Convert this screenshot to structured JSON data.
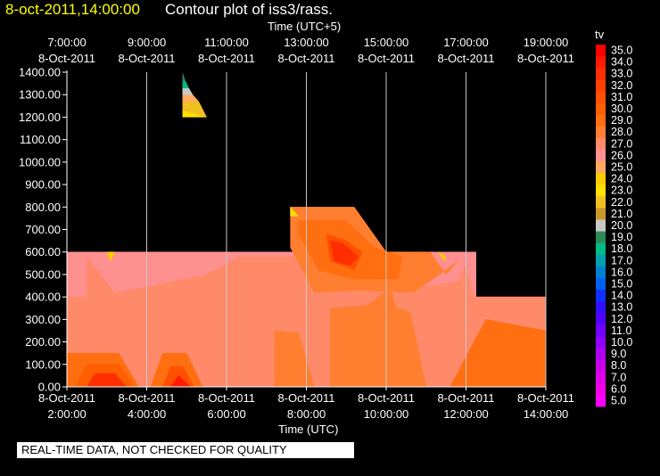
{
  "header": {
    "date_label": "8-oct-2011,14:00:00",
    "title": "Contour plot of iss3/rass."
  },
  "chart_data": {
    "type": "heatmap",
    "title": "Contour plot of iss3/rass.",
    "x_top_label": "Time (UTC+5)",
    "x_bottom_label": "Time (UTC)",
    "ylabel": "",
    "ylim": [
      0,
      1400
    ],
    "xlim_utc_hours": [
      2,
      14
    ],
    "grid": true,
    "y_ticks": [
      "0.00",
      "100.00",
      "200.00",
      "300.00",
      "400.00",
      "500.00",
      "600.00",
      "700.00",
      "800.00",
      "900.00",
      "1000.00",
      "1100.00",
      "1200.00",
      "1300.00",
      "1400.00"
    ],
    "x_top_ticks": [
      {
        "time": "7:00:00",
        "date": "8-Oct-2011"
      },
      {
        "time": "9:00:00",
        "date": "8-Oct-2011"
      },
      {
        "time": "11:00:00",
        "date": "8-Oct-2011"
      },
      {
        "time": "13:00:00",
        "date": "8-Oct-2011"
      },
      {
        "time": "15:00:00",
        "date": "8-Oct-2011"
      },
      {
        "time": "17:00:00",
        "date": "8-Oct-2011"
      },
      {
        "time": "19:00:00",
        "date": "8-Oct-2011"
      }
    ],
    "x_bottom_ticks": [
      {
        "time": "2:00:00",
        "date": "8-Oct-2011"
      },
      {
        "time": "4:00:00",
        "date": "8-Oct-2011"
      },
      {
        "time": "6:00:00",
        "date": "8-Oct-2011"
      },
      {
        "time": "8:00:00",
        "date": "8-Oct-2011"
      },
      {
        "time": "10:00:00",
        "date": "8-Oct-2011"
      },
      {
        "time": "12:00:00",
        "date": "8-Oct-2011"
      },
      {
        "time": "14:00:00",
        "date": "8-Oct-2011"
      }
    ],
    "legend": {
      "title": "tv",
      "labels": [
        "35.0",
        "34.0",
        "33.0",
        "32.0",
        "31.0",
        "30.0",
        "29.0",
        "28.0",
        "27.0",
        "26.0",
        "25.0",
        "24.0",
        "23.0",
        "22.0",
        "21.0",
        "20.0",
        "19.0",
        "18.0",
        "17.0",
        "16.0",
        "15.0",
        "14.0",
        "13.0",
        "12.0",
        "11.0",
        "10.0",
        "9.0",
        "8.0",
        "7.0",
        "6.0",
        "5.0"
      ],
      "colors": [
        "#ff0000",
        "#ff1a00",
        "#ff2e00",
        "#ff3f00",
        "#ff4f00",
        "#ff5f00",
        "#ff6e10",
        "#ff7e30",
        "#ff8a6a",
        "#ff9090",
        "#ffaa60",
        "#ffcc00",
        "#ffe000",
        "#f0c020",
        "#c89828",
        "#c8c8c8",
        "#2e8b57",
        "#00bb88",
        "#00a0b0",
        "#0080d0",
        "#0060f0",
        "#1030ff",
        "#3010ff",
        "#5000ff",
        "#7000ff",
        "#9000ff",
        "#b000f0",
        "#c800e8",
        "#e000e8",
        "#f000e8",
        "#ff00ff"
      ]
    },
    "regions": [
      {
        "value": 26,
        "t": [
          2,
          3.6,
          3.6,
          2
        ],
        "z": [
          400,
          400,
          600,
          600
        ]
      },
      {
        "value": 26,
        "t": [
          3.6,
          12.25,
          14,
          14,
          2
        ],
        "z": [
          0,
          0,
          0,
          400,
          400
        ]
      },
      {
        "value": 26,
        "t": [
          3.6,
          10.5,
          12.25,
          12.25,
          3.6
        ],
        "z": [
          400,
          400,
          400,
          600,
          600
        ]
      },
      {
        "value": 27,
        "t": [
          2,
          14,
          14,
          2
        ],
        "z": [
          0,
          0,
          400,
          400
        ]
      },
      {
        "value": 27,
        "t": [
          2.5,
          12.2,
          11.9,
          2.5
        ],
        "z": [
          400,
          400,
          580,
          580
        ]
      },
      {
        "value": 26,
        "t": [
          2.5,
          6.3,
          5.5,
          3.2,
          2.5
        ],
        "z": [
          580,
          580,
          500,
          420,
          580
        ]
      },
      {
        "value": 26,
        "t": [
          9.9,
          12,
          12,
          11.8,
          10.5,
          9.9
        ],
        "z": [
          590,
          590,
          560,
          470,
          440,
          590
        ]
      },
      {
        "value": 29,
        "t": [
          2,
          3.8,
          3.3,
          2
        ],
        "z": [
          0,
          0,
          150,
          150
        ]
      },
      {
        "value": 30,
        "t": [
          2.2,
          3.7,
          3.3,
          2.5
        ],
        "z": [
          0,
          0,
          100,
          100
        ]
      },
      {
        "value": 33,
        "t": [
          2.5,
          3.5,
          3.2,
          2.7
        ],
        "z": [
          0,
          0,
          60,
          60
        ]
      },
      {
        "value": 29,
        "t": [
          4.1,
          5.4,
          5.0,
          4.4
        ],
        "z": [
          0,
          0,
          150,
          150
        ]
      },
      {
        "value": 31,
        "t": [
          4.4,
          5.2,
          4.9,
          4.6
        ],
        "z": [
          0,
          0,
          90,
          90
        ]
      },
      {
        "value": 34,
        "t": [
          4.6,
          5.1,
          4.8
        ],
        "z": [
          0,
          0,
          50
        ]
      },
      {
        "value": 28,
        "t": [
          7.2,
          8.2,
          7.8,
          7.2
        ],
        "z": [
          0,
          0,
          240,
          250
        ]
      },
      {
        "value": 28,
        "t": [
          8.6,
          11,
          10.6,
          10,
          8.6
        ],
        "z": [
          0,
          0,
          330,
          370,
          350
        ]
      },
      {
        "value": 29,
        "t": [
          11.6,
          14,
          14,
          12.5
        ],
        "z": [
          0,
          0,
          250,
          300
        ]
      },
      {
        "value": 28,
        "t": [
          9.2,
          10.3,
          10.1
        ],
        "z": [
          320,
          330,
          440
        ]
      },
      {
        "value": 28,
        "t": [
          7.6,
          9.2,
          10,
          11.1,
          11.5,
          11.8,
          10.7,
          9.2,
          8.2,
          7.6
        ],
        "z": [
          800,
          800,
          600,
          600,
          500,
          560,
          420,
          430,
          420,
          620
        ]
      },
      {
        "value": 29,
        "t": [
          7.8,
          9.0,
          9.7,
          10.4,
          10.3,
          9.2,
          8.3,
          7.8
        ],
        "z": [
          740,
          740,
          620,
          580,
          480,
          480,
          520,
          680
        ]
      },
      {
        "value": 31,
        "t": [
          8.5,
          9.0,
          9.4,
          9.2,
          8.6
        ],
        "z": [
          680,
          650,
          600,
          520,
          560
        ]
      },
      {
        "value": 33,
        "t": [
          8.6,
          8.9,
          9.3,
          9.1,
          8.7
        ],
        "z": [
          650,
          640,
          580,
          540,
          560
        ]
      },
      {
        "value": 23,
        "t": [
          7.6,
          7.8,
          7.6
        ],
        "z": [
          800,
          760,
          760
        ]
      },
      {
        "value": 24,
        "t": [
          3.0,
          3.2,
          3.1
        ],
        "z": [
          600,
          600,
          560
        ]
      },
      {
        "value": 24,
        "t": [
          11.3,
          11.5,
          11.45
        ],
        "z": [
          600,
          580,
          560
        ]
      },
      {
        "value": 23,
        "t": [
          4.9,
          5.5,
          4.9
        ],
        "z": [
          1200,
          1200,
          1230
        ]
      },
      {
        "value": 22,
        "t": [
          4.9,
          5.5,
          5.3,
          4.9
        ],
        "z": [
          1230,
          1200,
          1270,
          1270
        ]
      },
      {
        "value": 25,
        "t": [
          4.9,
          5.3,
          5.15,
          4.9
        ],
        "z": [
          1270,
          1270,
          1300,
          1300
        ]
      },
      {
        "value": 20,
        "t": [
          4.9,
          5.15,
          5.05,
          4.9
        ],
        "z": [
          1300,
          1300,
          1330,
          1330
        ]
      },
      {
        "value": 18,
        "t": [
          4.9,
          5.05,
          4.97,
          4.9
        ],
        "z": [
          1330,
          1330,
          1360,
          1360
        ]
      },
      {
        "value": 19,
        "t": [
          4.9,
          4.97,
          4.9
        ],
        "z": [
          1360,
          1360,
          1395
        ]
      }
    ]
  },
  "warning": "REAL-TIME DATA, NOT CHECKED FOR QUALITY"
}
